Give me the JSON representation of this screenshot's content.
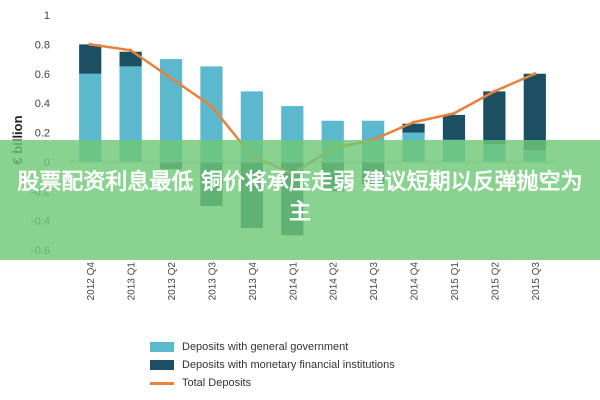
{
  "banner": {
    "headline": "股票配资利息最低 铜价将承压走弱 建议短期以反弹抛空为主"
  },
  "chart_data": {
    "type": "bar",
    "stacked": true,
    "ylabel": "€ billion",
    "ylim": [
      -0.6,
      1.0
    ],
    "yticks": [
      1,
      0.8,
      0.6,
      0.4,
      0.2,
      0,
      -0.2,
      -0.4,
      -0.6
    ],
    "ytick_labels": [
      "1",
      "0.8",
      "0.6",
      "0.4",
      "0.2",
      "0",
      "-0.2",
      "-0.4",
      "-0.6"
    ],
    "grid": false,
    "legend_position": "bottom",
    "categories": [
      "2012 Q4",
      "2013 Q1",
      "2013 Q2",
      "2013 Q3",
      "2013 Q4",
      "2014 Q1",
      "2014 Q2",
      "2014 Q3",
      "2014 Q4",
      "2015 Q1",
      "2015 Q2",
      "2015 Q3"
    ],
    "series": [
      {
        "name": "Deposits with general government",
        "kind": "bar",
        "color": "#5cb8cc",
        "values": [
          0.6,
          0.65,
          0.7,
          0.65,
          0.48,
          0.38,
          0.28,
          0.28,
          0.2,
          0.15,
          0.12,
          0.08
        ]
      },
      {
        "name": "Deposits with monetary financial institutions",
        "kind": "bar",
        "color": "#1d4f63",
        "values": [
          0.2,
          0.1,
          -0.05,
          -0.3,
          -0.45,
          -0.5,
          -0.2,
          -0.15,
          0.06,
          0.17,
          0.36,
          0.52
        ]
      },
      {
        "name": "Total Deposits",
        "kind": "line",
        "color": "#e8823a",
        "values": [
          0.8,
          0.76,
          0.57,
          0.38,
          0.04,
          -0.08,
          0.09,
          0.15,
          0.27,
          0.33,
          0.48,
          0.6
        ]
      }
    ]
  }
}
